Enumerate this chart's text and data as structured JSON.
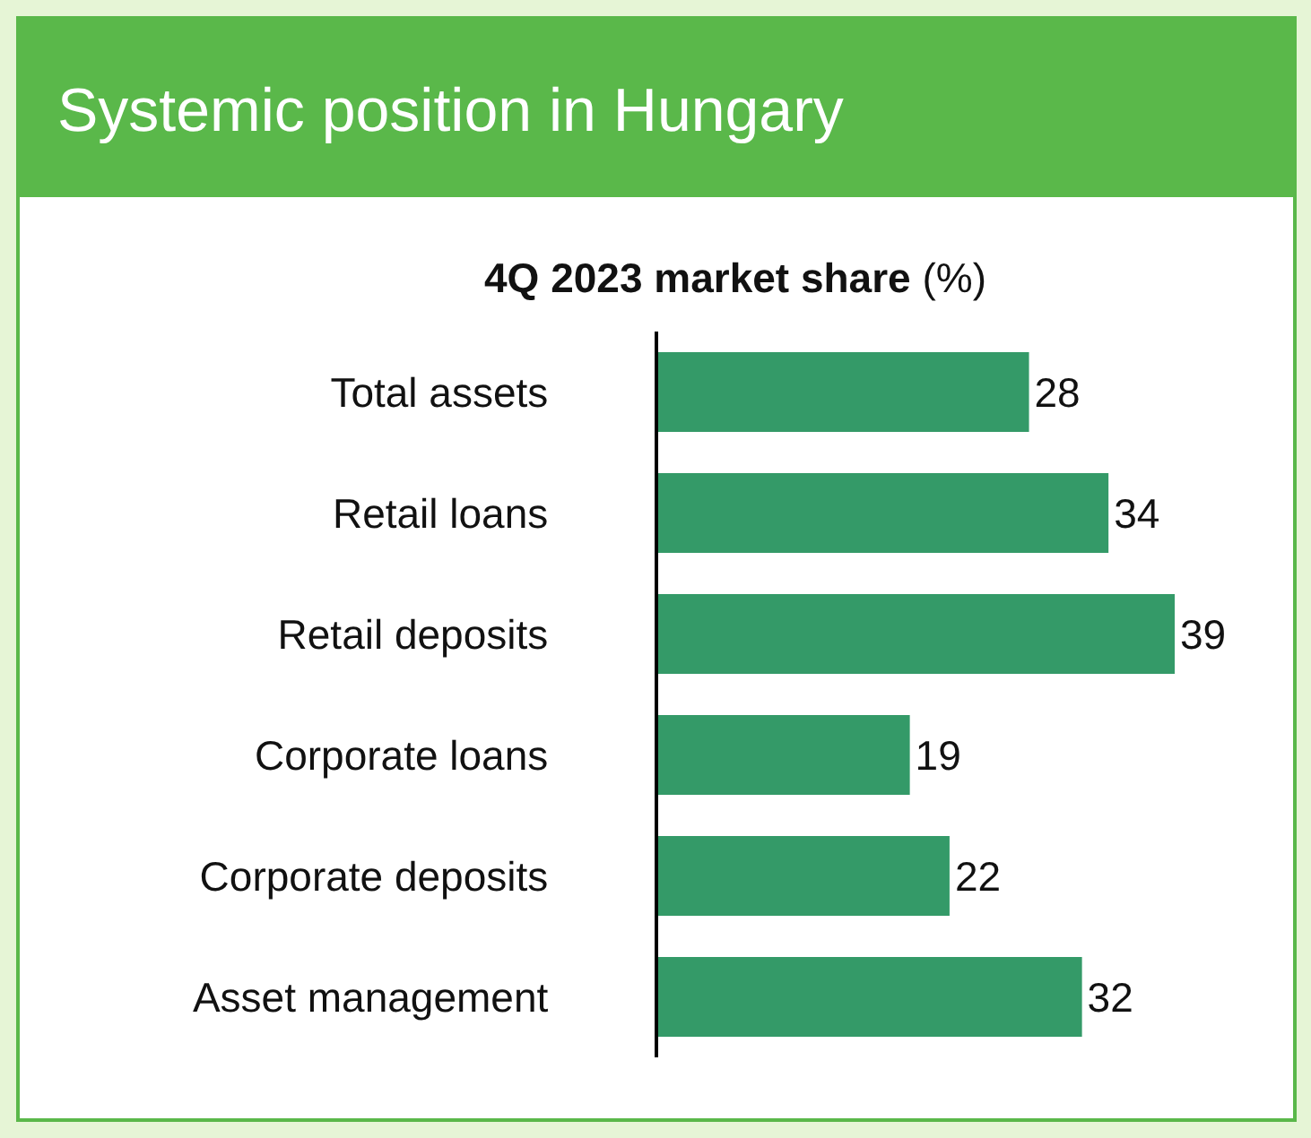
{
  "chart_data": {
    "type": "bar",
    "orientation": "horizontal",
    "title": "Systemic position in Hungary",
    "subtitle": "4Q 2023 market share (%)",
    "categories": [
      "Total assets",
      "Retail loans",
      "Retail deposits",
      "Corporate loans",
      "Corporate deposits",
      "Asset management"
    ],
    "values": [
      28,
      34,
      39,
      19,
      22,
      32
    ],
    "color": "#349a68",
    "data_labels": true
  }
}
